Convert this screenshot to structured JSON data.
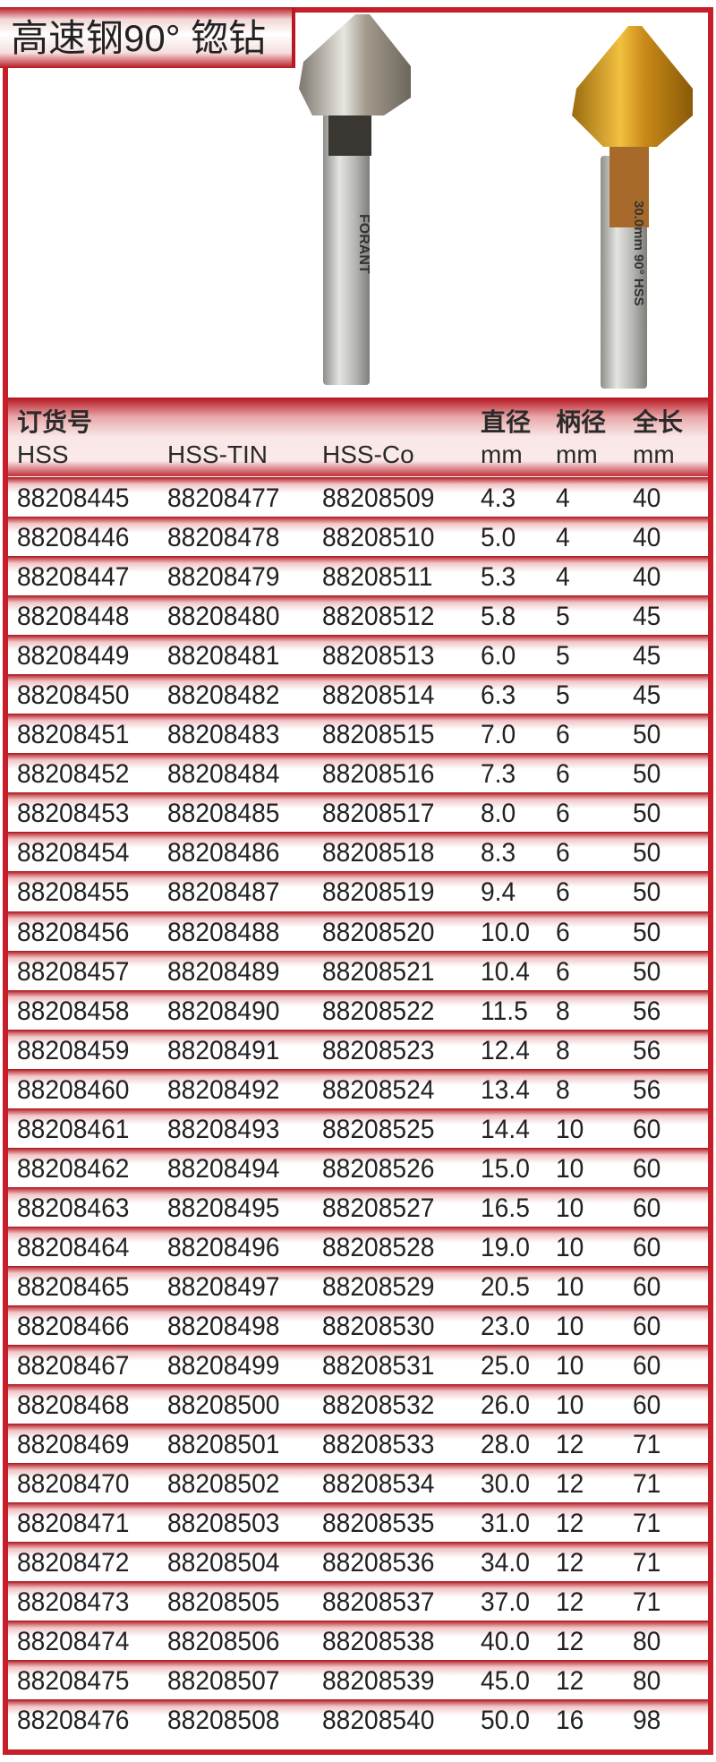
{
  "title": "高速钢90° 锪钻",
  "product_images": {
    "left_bit_marking": "FORANT",
    "right_bit_marking": "30.0mm 90° HSS"
  },
  "colors": {
    "accent_red": "#c61f2a",
    "tin_gold": "#d49a1e",
    "steel": "#b8b8b4"
  },
  "header": {
    "order_no": "订货号",
    "diameter": "直径",
    "shank": "柄径",
    "length": "全长",
    "hss": "HSS",
    "hss_tin": "HSS-TIN",
    "hss_co": "HSS-Co",
    "unit_diameter": "mm",
    "unit_shank": "mm",
    "unit_length": "mm"
  },
  "rows": [
    [
      "88208445",
      "88208477",
      "88208509",
      "4.3",
      "4",
      "40"
    ],
    [
      "88208446",
      "88208478",
      "88208510",
      "5.0",
      "4",
      "40"
    ],
    [
      "88208447",
      "88208479",
      "88208511",
      "5.3",
      "4",
      "40"
    ],
    [
      "88208448",
      "88208480",
      "88208512",
      "5.8",
      "5",
      "45"
    ],
    [
      "88208449",
      "88208481",
      "88208513",
      "6.0",
      "5",
      "45"
    ],
    [
      "88208450",
      "88208482",
      "88208514",
      "6.3",
      "5",
      "45"
    ],
    [
      "88208451",
      "88208483",
      "88208515",
      "7.0",
      "6",
      "50"
    ],
    [
      "88208452",
      "88208484",
      "88208516",
      "7.3",
      "6",
      "50"
    ],
    [
      "88208453",
      "88208485",
      "88208517",
      "8.0",
      "6",
      "50"
    ],
    [
      "88208454",
      "88208486",
      "88208518",
      "8.3",
      "6",
      "50"
    ],
    [
      "88208455",
      "88208487",
      "88208519",
      "9.4",
      "6",
      "50"
    ],
    [
      "88208456",
      "88208488",
      "88208520",
      "10.0",
      "6",
      "50"
    ],
    [
      "88208457",
      "88208489",
      "88208521",
      "10.4",
      "6",
      "50"
    ],
    [
      "88208458",
      "88208490",
      "88208522",
      "11.5",
      "8",
      "56"
    ],
    [
      "88208459",
      "88208491",
      "88208523",
      "12.4",
      "8",
      "56"
    ],
    [
      "88208460",
      "88208492",
      "88208524",
      "13.4",
      "8",
      "56"
    ],
    [
      "88208461",
      "88208493",
      "88208525",
      "14.4",
      "10",
      "60"
    ],
    [
      "88208462",
      "88208494",
      "88208526",
      "15.0",
      "10",
      "60"
    ],
    [
      "88208463",
      "88208495",
      "88208527",
      "16.5",
      "10",
      "60"
    ],
    [
      "88208464",
      "88208496",
      "88208528",
      "19.0",
      "10",
      "60"
    ],
    [
      "88208465",
      "88208497",
      "88208529",
      "20.5",
      "10",
      "60"
    ],
    [
      "88208466",
      "88208498",
      "88208530",
      "23.0",
      "10",
      "60"
    ],
    [
      "88208467",
      "88208499",
      "88208531",
      "25.0",
      "10",
      "60"
    ],
    [
      "88208468",
      "88208500",
      "88208532",
      "26.0",
      "10",
      "60"
    ],
    [
      "88208469",
      "88208501",
      "88208533",
      "28.0",
      "12",
      "71"
    ],
    [
      "88208470",
      "88208502",
      "88208534",
      "30.0",
      "12",
      "71"
    ],
    [
      "88208471",
      "88208503",
      "88208535",
      "31.0",
      "12",
      "71"
    ],
    [
      "88208472",
      "88208504",
      "88208536",
      "34.0",
      "12",
      "71"
    ],
    [
      "88208473",
      "88208505",
      "88208537",
      "37.0",
      "12",
      "71"
    ],
    [
      "88208474",
      "88208506",
      "88208538",
      "40.0",
      "12",
      "80"
    ],
    [
      "88208475",
      "88208507",
      "88208539",
      "45.0",
      "12",
      "80"
    ],
    [
      "88208476",
      "88208508",
      "88208540",
      "50.0",
      "16",
      "98"
    ]
  ]
}
